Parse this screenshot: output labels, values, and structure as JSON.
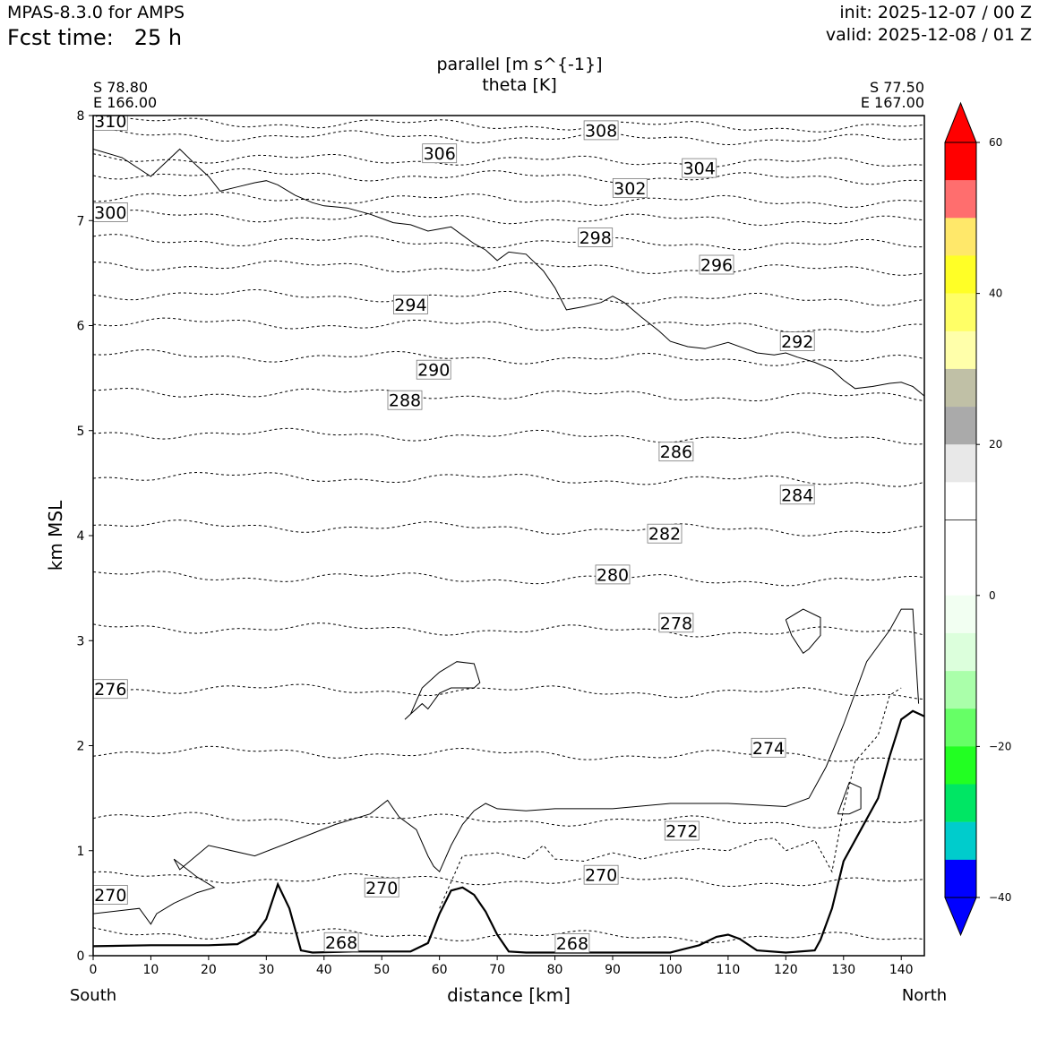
{
  "header": {
    "model": "MPAS-8.3.0 for AMPS",
    "fcst_label": "Fcst time:",
    "fcst_value": "25 h",
    "init": "init: 2025-12-07 / 00 Z",
    "valid": "valid: 2025-12-08 / 01 Z"
  },
  "chart_data": {
    "type": "line",
    "title": "parallel [m s^{-1}]",
    "subtitle": "theta [K]",
    "xlabel": "distance [km]",
    "ylabel": "km MSL",
    "xlim": [
      0,
      144
    ],
    "ylim": [
      0,
      8
    ],
    "xticks": [
      0,
      10,
      20,
      30,
      40,
      50,
      60,
      70,
      80,
      90,
      100,
      110,
      120,
      130,
      140
    ],
    "yticks": [
      0,
      1,
      2,
      3,
      4,
      5,
      6,
      7,
      8
    ],
    "start_point": {
      "lat": "S 78.80",
      "lon": "E 166.00",
      "end_label": "South"
    },
    "end_point": {
      "lat": "S 77.50",
      "lon": "E 167.00",
      "end_label": "North"
    },
    "terrain": {
      "x": [
        0,
        10,
        20,
        25,
        28,
        30,
        32,
        34,
        36,
        38,
        45,
        55,
        58,
        60,
        62,
        64,
        66,
        68,
        70,
        72,
        75,
        85,
        95,
        100,
        105,
        108,
        110,
        112,
        115,
        120,
        125,
        126,
        128,
        130,
        133,
        136,
        138,
        140,
        142,
        144
      ],
      "y": [
        0.09,
        0.1,
        0.1,
        0.11,
        0.2,
        0.35,
        0.68,
        0.45,
        0.05,
        0.03,
        0.04,
        0.04,
        0.12,
        0.4,
        0.62,
        0.65,
        0.58,
        0.42,
        0.2,
        0.04,
        0.03,
        0.03,
        0.03,
        0.03,
        0.1,
        0.18,
        0.2,
        0.16,
        0.05,
        0.03,
        0.05,
        0.15,
        0.45,
        0.9,
        1.2,
        1.5,
        1.9,
        2.25,
        2.33,
        2.28
      ]
    },
    "theta_levels": [
      {
        "label": "310",
        "level": 7.94
      },
      {
        "label": "308",
        "level": 7.82
      },
      {
        "label": "306",
        "level": 7.6
      },
      {
        "label": "304",
        "level": 7.45
      },
      {
        "label": "302",
        "level": 7.23
      },
      {
        "label": "300",
        "level": 7.05
      },
      {
        "label": "298",
        "level": 6.82
      },
      {
        "label": "296",
        "level": 6.58
      },
      {
        "label": "294",
        "level": 6.3
      },
      {
        "label": "292",
        "level": 6.03
      },
      {
        "label": "290",
        "level": 5.72
      },
      {
        "label": "288",
        "level": 5.37
      },
      {
        "label": "286",
        "level": 4.98
      },
      {
        "label": "284",
        "level": 4.57
      },
      {
        "label": "282",
        "level": 4.1
      },
      {
        "label": "280",
        "level": 3.62
      },
      {
        "label": "278",
        "level": 3.13
      },
      {
        "label": "276",
        "level": 2.55
      },
      {
        "label": "274",
        "level": 1.95
      },
      {
        "label": "272",
        "level": 1.32
      },
      {
        "label": "270",
        "level": 0.75
      },
      {
        "label": "268",
        "level": 0.22
      }
    ],
    "theta_labels": [
      {
        "text": "310",
        "x": 3,
        "y": 7.95
      },
      {
        "text": "308",
        "x": 88,
        "y": 7.86
      },
      {
        "text": "306",
        "x": 60,
        "y": 7.64
      },
      {
        "text": "304",
        "x": 105,
        "y": 7.5
      },
      {
        "text": "302",
        "x": 93,
        "y": 7.31
      },
      {
        "text": "300",
        "x": 3,
        "y": 7.08
      },
      {
        "text": "298",
        "x": 87,
        "y": 6.84
      },
      {
        "text": "296",
        "x": 108,
        "y": 6.58
      },
      {
        "text": "294",
        "x": 55,
        "y": 6.2
      },
      {
        "text": "292",
        "x": 122,
        "y": 5.85
      },
      {
        "text": "290",
        "x": 59,
        "y": 5.58
      },
      {
        "text": "288",
        "x": 54,
        "y": 5.29
      },
      {
        "text": "286",
        "x": 101,
        "y": 4.8
      },
      {
        "text": "284",
        "x": 122,
        "y": 4.39
      },
      {
        "text": "282",
        "x": 99,
        "y": 4.02
      },
      {
        "text": "280",
        "x": 90,
        "y": 3.63
      },
      {
        "text": "278",
        "x": 101,
        "y": 3.17
      },
      {
        "text": "276",
        "x": 3,
        "y": 2.54
      },
      {
        "text": "274",
        "x": 117,
        "y": 1.98
      },
      {
        "text": "272",
        "x": 102,
        "y": 1.19
      },
      {
        "text": "270",
        "x": 50,
        "y": 0.65
      },
      {
        "text": "270",
        "x": 88,
        "y": 0.77
      },
      {
        "text": "270",
        "x": 3,
        "y": 0.58
      },
      {
        "text": "268",
        "x": 43,
        "y": 0.13
      },
      {
        "text": "268",
        "x": 83,
        "y": 0.12
      }
    ],
    "zero_contour_upper": {
      "x": [
        0,
        5,
        10,
        15,
        18,
        20,
        22,
        25,
        28,
        30,
        32,
        35,
        38,
        40,
        44,
        48,
        50,
        52,
        55,
        58,
        60,
        62,
        64,
        66,
        68,
        70,
        72,
        75,
        78,
        80,
        82,
        85,
        88,
        90,
        92,
        95,
        98,
        100,
        103,
        106,
        110,
        113,
        115,
        118,
        120,
        122,
        125,
        128,
        130,
        132,
        135,
        138,
        140,
        142,
        144
      ],
      "y": [
        7.68,
        7.6,
        7.42,
        7.68,
        7.52,
        7.42,
        7.28,
        7.32,
        7.36,
        7.38,
        7.34,
        7.24,
        7.17,
        7.14,
        7.12,
        7.06,
        7.02,
        6.98,
        6.96,
        6.9,
        6.92,
        6.94,
        6.86,
        6.78,
        6.72,
        6.62,
        6.7,
        6.68,
        6.52,
        6.36,
        6.15,
        6.18,
        6.22,
        6.28,
        6.22,
        6.08,
        5.95,
        5.85,
        5.8,
        5.78,
        5.84,
        5.78,
        5.74,
        5.72,
        5.74,
        5.7,
        5.65,
        5.58,
        5.48,
        5.4,
        5.42,
        5.45,
        5.46,
        5.42,
        5.33
      ]
    },
    "contour_lines": [
      {
        "style": "solid",
        "x": [
          0,
          8,
          10,
          11,
          14,
          18,
          21,
          18,
          14,
          15,
          20,
          28,
          35,
          42,
          48,
          51,
          53,
          56,
          58,
          59,
          60,
          62,
          64,
          66,
          68,
          70,
          75,
          80,
          90,
          100,
          110,
          120,
          124,
          127,
          130,
          134,
          138,
          140,
          142,
          143
        ],
        "y": [
          0.4,
          0.45,
          0.3,
          0.4,
          0.5,
          0.6,
          0.65,
          0.75,
          0.92,
          0.82,
          1.05,
          0.95,
          1.1,
          1.25,
          1.35,
          1.48,
          1.32,
          1.2,
          0.95,
          0.85,
          0.8,
          1.05,
          1.25,
          1.38,
          1.45,
          1.4,
          1.38,
          1.4,
          1.4,
          1.45,
          1.45,
          1.42,
          1.5,
          1.8,
          2.2,
          2.8,
          3.1,
          3.3,
          3.3,
          2.4
        ]
      },
      {
        "style": "solid",
        "x": [
          54,
          55,
          57,
          60,
          63,
          66,
          67,
          66,
          62,
          60,
          58,
          57,
          55,
          54
        ],
        "y": [
          2.25,
          2.3,
          2.55,
          2.7,
          2.8,
          2.78,
          2.6,
          2.55,
          2.55,
          2.5,
          2.35,
          2.4,
          2.3,
          2.25
        ]
      },
      {
        "style": "solid",
        "x": [
          120,
          123,
          126,
          126,
          124,
          123,
          121,
          120
        ],
        "y": [
          3.2,
          3.3,
          3.22,
          3.05,
          2.92,
          2.88,
          3.05,
          3.2
        ]
      },
      {
        "style": "solid",
        "x": [
          129,
          131,
          133,
          133,
          131,
          129,
          129
        ],
        "y": [
          1.35,
          1.65,
          1.6,
          1.4,
          1.35,
          1.35,
          1.35
        ]
      },
      {
        "style": "dashed",
        "x": [
          60,
          64,
          70,
          75,
          78,
          80,
          85,
          90,
          95,
          100,
          105,
          110,
          115,
          118,
          120,
          125,
          128,
          130,
          132,
          136,
          138,
          140
        ],
        "y": [
          0.45,
          0.95,
          0.98,
          0.92,
          1.05,
          0.92,
          0.9,
          0.98,
          0.92,
          0.98,
          1.02,
          1.0,
          1.1,
          1.12,
          1.0,
          1.1,
          0.8,
          1.4,
          1.85,
          2.1,
          2.48,
          2.55
        ]
      }
    ]
  },
  "colorbar": {
    "ticks": [
      "60",
      "40",
      "20",
      "0",
      "−20",
      "−40"
    ],
    "bins": [
      {
        "color": "#ff0000",
        "label": "50 to 60"
      },
      {
        "color": "#ff6e6e",
        "label": "45 to 50"
      },
      {
        "color": "#ffe86a",
        "label": "40 to 45"
      },
      {
        "color": "#ffff26",
        "label": "35 to 40"
      },
      {
        "color": "#ffff66",
        "label": "30 to 35"
      },
      {
        "color": "#ffffaa",
        "label": "25 to 30"
      },
      {
        "color": "#c0c0a6",
        "label": "20 to 25"
      },
      {
        "color": "#aaaaaa",
        "label": "15 to 20"
      },
      {
        "color": "#e8e8e8",
        "label": "10 to 15"
      },
      {
        "color": "#ffffff",
        "label": "5 to 10"
      },
      {
        "color": "#ffffff",
        "label": "0 to 5"
      },
      {
        "color": "#ffffff",
        "label": "-5 to 0"
      },
      {
        "color": "#f2fff2",
        "label": "-10 to -5"
      },
      {
        "color": "#dcffdc",
        "label": "-15 to -10"
      },
      {
        "color": "#aaffaa",
        "label": "-20 to -15"
      },
      {
        "color": "#66ff66",
        "label": "-25 to -20"
      },
      {
        "color": "#22ff22",
        "label": "-30 to -25"
      },
      {
        "color": "#00e664",
        "label": "-35 to -30"
      },
      {
        "color": "#00cccc",
        "label": "-40 to -35"
      },
      {
        "color": "#0000ff",
        "label": "-45 to -40"
      }
    ],
    "over_color": "#ff0000",
    "under_color": "#0000ff"
  }
}
